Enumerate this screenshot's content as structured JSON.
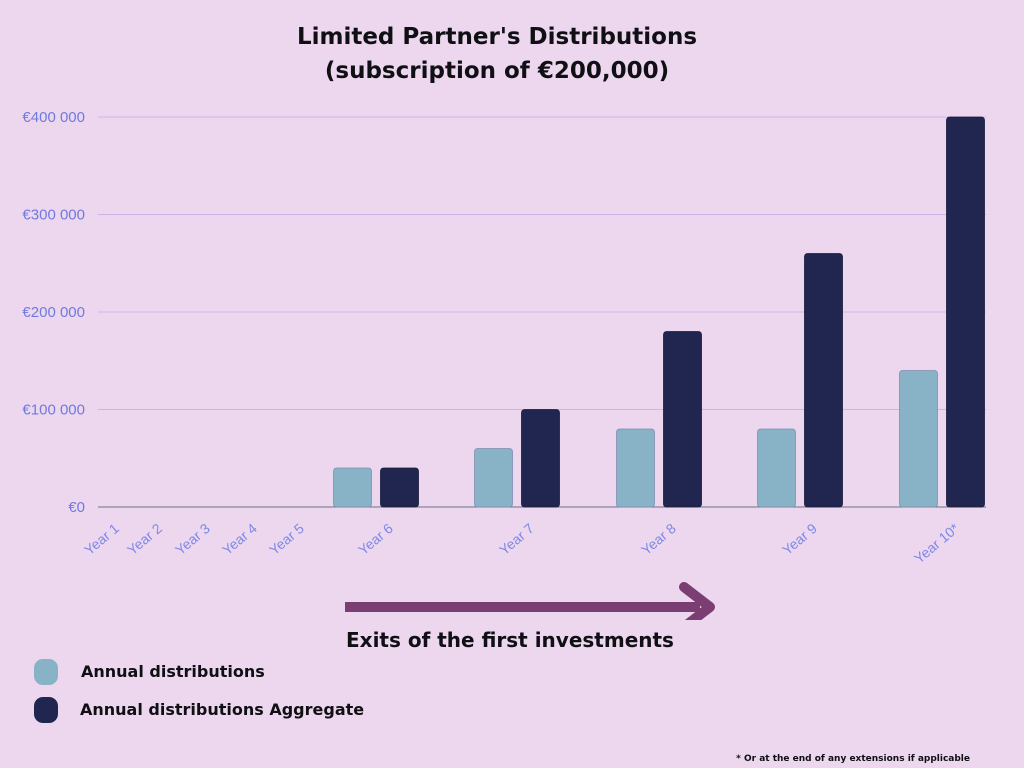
{
  "title": {
    "line1": "Limited Partner's Distributions",
    "line2": "(subscription of €200,000)"
  },
  "chart_data": {
    "type": "bar",
    "categories": [
      "Year 1",
      "Year 2",
      "Year 3",
      "Year 4",
      "Year 5",
      "Year 6",
      "Year 7",
      "Year 8",
      "Year 9",
      "Year 10*"
    ],
    "series": [
      {
        "name": "Annual distributions",
        "color": "#88b2c5",
        "values": [
          0,
          0,
          0,
          0,
          0,
          40000,
          60000,
          80000,
          80000,
          140000
        ]
      },
      {
        "name": "Annual distributions Aggregate",
        "color": "#212651",
        "values": [
          0,
          0,
          0,
          0,
          0,
          40000,
          100000,
          180000,
          260000,
          400000
        ]
      }
    ],
    "ylim": [
      0,
      400000
    ],
    "yticks": [
      0,
      100000,
      200000,
      300000,
      400000
    ],
    "ytick_labels": [
      "€0",
      "€100 000",
      "€200 000",
      "€300 000",
      "€400 000"
    ],
    "grid": true,
    "legend_position": "bottom-left",
    "annotation": "Exits of the first investments",
    "annotation_arrow_color": "#7b3e72",
    "footnote": "* Or at the end of any extensions if applicable"
  }
}
